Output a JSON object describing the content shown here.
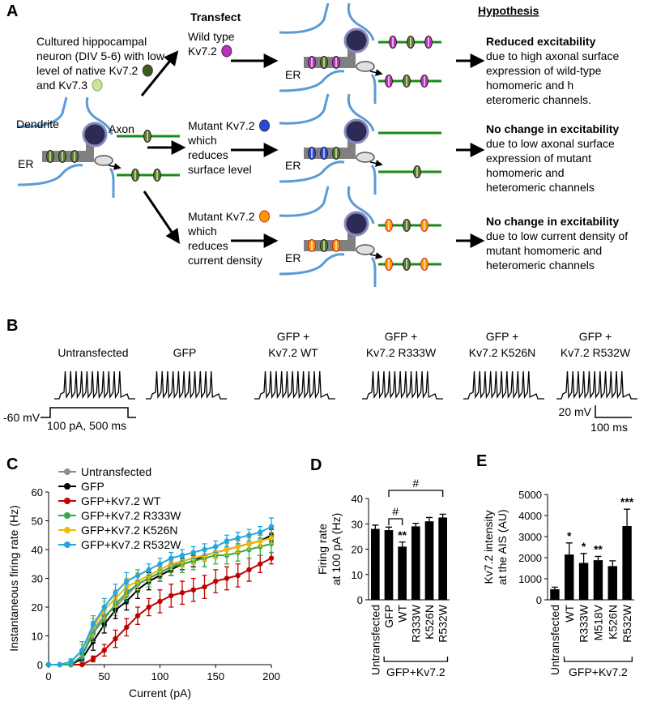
{
  "panel_a": {
    "label": "A",
    "transfect_heading": "Transfect",
    "hypothesis_heading": "Hypothesis",
    "neuron_description": [
      "Cultured hippocampal",
      "neuron (DIV 5-6) with low",
      "level of native Kv7.2",
      "and Kv7.3"
    ],
    "dendrite_label": "Dendrite",
    "axon_label": "Axon",
    "er_label": "ER",
    "rows": [
      {
        "transfect": [
          "Wild type",
          "Kv7.2"
        ],
        "hypothesis_title": "Reduced excitability",
        "hypothesis_text": [
          "due to high axonal surface",
          "expression of wild-type",
          "homomeric and h",
          "eteromeric channels."
        ]
      },
      {
        "transfect": [
          "Mutant Kv7.2",
          "which",
          "reduces",
          "surface level"
        ],
        "hypothesis_title": "No change in excitability",
        "hypothesis_text": [
          "due to low axonal surface",
          "expression of mutant",
          "homomeric and",
          "heteromeric channels"
        ]
      },
      {
        "transfect": [
          "Mutant Kv7.2",
          "which",
          "reduces",
          "current density"
        ],
        "hypothesis_title": "No change in excitability",
        "hypothesis_text": [
          "due to low current density of",
          "mutant homomeric and",
          "heteromeric channels"
        ]
      }
    ]
  },
  "panel_b": {
    "label": "B",
    "conditions": [
      [
        "Untransfected"
      ],
      [
        "GFP"
      ],
      [
        "GFP +",
        "Kv7.2 WT"
      ],
      [
        "GFP +",
        "Kv7.2 R333W"
      ],
      [
        "GFP +",
        "Kv7.2 K526N"
      ],
      [
        "GFP +",
        "Kv7.2 R532W"
      ]
    ],
    "baseline_label": "-60 mV",
    "stimulus_label": "100 pA, 500 ms",
    "scale_voltage": "20 mV",
    "scale_time": "100 ms"
  },
  "chart_data": [
    {
      "panel_label": "C",
      "type": "line",
      "x": [
        0,
        10,
        20,
        30,
        40,
        50,
        60,
        70,
        80,
        90,
        100,
        110,
        120,
        130,
        140,
        150,
        160,
        170,
        180,
        190,
        200
      ],
      "xlim": [
        0,
        200
      ],
      "xticks": [
        0,
        50,
        100,
        150,
        200
      ],
      "ylim": [
        0,
        60
      ],
      "yticks": [
        0,
        10,
        20,
        30,
        40,
        50,
        60
      ],
      "x_label": "Current (pA)",
      "y_label": "Instantaneous firing rate (Hz)",
      "legend": "upper left",
      "series": [
        {
          "name": "Untransfected",
          "color": "#8c8c8c",
          "values": [
            0,
            0,
            0,
            3,
            12,
            17,
            20,
            24,
            28,
            30,
            32,
            34,
            36,
            37,
            38,
            39,
            40,
            41,
            42,
            43,
            44
          ],
          "errors": [
            0,
            0,
            0,
            2,
            3,
            3,
            3,
            3,
            3,
            2,
            2,
            2,
            2,
            2,
            2,
            2,
            2,
            2,
            2,
            2,
            2
          ]
        },
        {
          "name": "GFP",
          "color": "#000000",
          "values": [
            0,
            0,
            0,
            2,
            8,
            14,
            19,
            22,
            26,
            29,
            31,
            33,
            35,
            36,
            38,
            39,
            40,
            41,
            42,
            43,
            45
          ],
          "errors": [
            0,
            0,
            0,
            2,
            3,
            3,
            3,
            3,
            3,
            3,
            2,
            2,
            2,
            2,
            2,
            2,
            2,
            2,
            2,
            2,
            2
          ]
        },
        {
          "name": "GFP+Kv7.2 WT",
          "color": "#c00000",
          "values": [
            0,
            0,
            0,
            0,
            2,
            5,
            9,
            13,
            17,
            20,
            22,
            24,
            25,
            26,
            27,
            29,
            30,
            31,
            33,
            35,
            37
          ],
          "errors": [
            0,
            0,
            0,
            0,
            1,
            2,
            3,
            3,
            3,
            3,
            4,
            4,
            4,
            4,
            4,
            4,
            4,
            4,
            4,
            3,
            2
          ]
        },
        {
          "name": "GFP+Kv7.2 R333W",
          "color": "#2eaa4a",
          "values": [
            0,
            0,
            0,
            3,
            11,
            16,
            21,
            25,
            28,
            30,
            32,
            34,
            35,
            36,
            37,
            38,
            38,
            39,
            40,
            41,
            42
          ],
          "errors": [
            0,
            0,
            0,
            2,
            3,
            3,
            3,
            3,
            3,
            3,
            3,
            3,
            3,
            3,
            3,
            3,
            3,
            3,
            3,
            3,
            3
          ]
        },
        {
          "name": "GFP+Kv7.2 K526N",
          "color": "#f5b800",
          "values": [
            0,
            0,
            1,
            5,
            13,
            19,
            23,
            27,
            29,
            31,
            33,
            35,
            36,
            37,
            38,
            39,
            40,
            41,
            42,
            43,
            44
          ],
          "errors": [
            0,
            0,
            1,
            2,
            3,
            3,
            3,
            3,
            3,
            2,
            2,
            2,
            2,
            2,
            2,
            2,
            2,
            2,
            2,
            2,
            2
          ]
        },
        {
          "name": "GFP+Kv7.2 R532W",
          "color": "#20a8e0",
          "values": [
            0,
            0,
            1,
            5,
            14,
            20,
            25,
            29,
            31,
            33,
            35,
            37,
            38,
            39,
            40,
            41,
            43,
            44,
            45,
            46,
            48
          ],
          "errors": [
            0,
            0,
            1,
            3,
            3,
            3,
            3,
            3,
            2,
            2,
            2,
            2,
            2,
            2,
            2,
            2,
            2,
            2,
            2,
            2,
            3
          ]
        }
      ]
    },
    {
      "panel_label": "D",
      "type": "bar",
      "categories": [
        "Untransfected",
        "GFP",
        "WT",
        "R333W",
        "K526N",
        "R532W"
      ],
      "values": [
        28,
        27.5,
        21,
        29,
        31,
        32.5
      ],
      "errors": [
        1.5,
        1.2,
        1.8,
        1.2,
        1.5,
        1.3
      ],
      "color": "#000000",
      "ylim": [
        0,
        40
      ],
      "yticks": [
        0,
        10,
        20,
        30,
        40
      ],
      "y_label": [
        "Firing rate",
        "at 100 pA (Hz)"
      ],
      "group_label": "GFP+Kv7.2",
      "annotations": [
        null,
        null,
        "**",
        null,
        null,
        null
      ],
      "comparisons": [
        {
          "between": [
            "GFP",
            "WT"
          ],
          "label": "#"
        },
        {
          "between": [
            "GFP",
            "R532W"
          ],
          "label": "#"
        }
      ]
    },
    {
      "panel_label": "E",
      "type": "bar",
      "categories": [
        "Untransfected",
        "WT",
        "R333W",
        "M518V",
        "K526N",
        "R532W"
      ],
      "values": [
        500,
        2150,
        1750,
        1880,
        1600,
        3500
      ],
      "errors": [
        100,
        550,
        450,
        180,
        250,
        800
      ],
      "color": "#000000",
      "ylim": [
        0,
        5000
      ],
      "yticks": [
        0,
        1000,
        2000,
        3000,
        4000,
        5000
      ],
      "y_label": [
        "Kv7.2 intensity",
        "at the AIS (AU)"
      ],
      "group_label": "GFP+Kv7.2",
      "annotations": [
        null,
        "*",
        "*",
        "**",
        null,
        "***"
      ]
    }
  ]
}
